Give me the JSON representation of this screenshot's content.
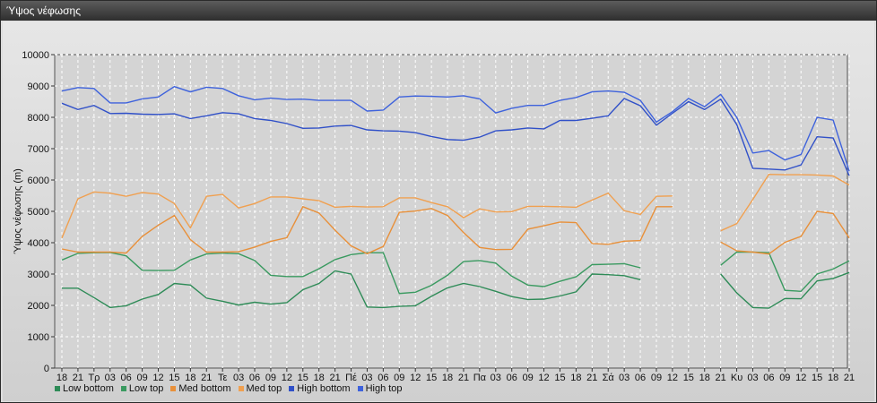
{
  "window": {
    "title": "Ύψος νέφωσης"
  },
  "chart_data": {
    "type": "line",
    "ylabel": "Ύψος νέφωσης (m)",
    "ylim": [
      0,
      10000
    ],
    "yticks": [
      0,
      1000,
      2000,
      3000,
      4000,
      5000,
      6000,
      7000,
      8000,
      9000,
      10000
    ],
    "grid": true,
    "legend": "bottom-left",
    "xticks": [
      "18",
      "21",
      "Τρ",
      "03",
      "06",
      "09",
      "12",
      "15",
      "18",
      "21",
      "Τε",
      "03",
      "06",
      "09",
      "12",
      "15",
      "18",
      "21",
      "Πέ",
      "03",
      "06",
      "09",
      "12",
      "15",
      "18",
      "21",
      "Πα",
      "03",
      "06",
      "09",
      "12",
      "15",
      "18",
      "21",
      "Σά",
      "03",
      "06",
      "09",
      "12",
      "15",
      "18",
      "21",
      "Κυ",
      "03",
      "06",
      "09",
      "12",
      "15",
      "18",
      "21"
    ],
    "series": [
      {
        "name": "Low bottom",
        "color": "#2e8b57",
        "values": [
          2550,
          2550,
          2250,
          1930,
          1990,
          2200,
          2350,
          2700,
          2650,
          2230,
          2130,
          2010,
          2100,
          2040,
          2090,
          2500,
          2700,
          3100,
          3000,
          1950,
          1930,
          1970,
          1990,
          2290,
          2560,
          2700,
          2600,
          2450,
          2280,
          2190,
          2200,
          2300,
          2430,
          3000,
          2980,
          2950,
          2820,
          null,
          null,
          null,
          null,
          3000,
          2400,
          1930,
          1910,
          2220,
          2210,
          2780,
          2860,
          3050
        ]
      },
      {
        "name": "Low top",
        "color": "#3a9a60",
        "values": [
          3450,
          3660,
          3680,
          3690,
          3580,
          3120,
          3110,
          3120,
          3450,
          3640,
          3670,
          3650,
          3430,
          2960,
          2920,
          2920,
          3170,
          3460,
          3620,
          3680,
          3680,
          2380,
          2420,
          2640,
          2960,
          3400,
          3430,
          3350,
          2930,
          2650,
          2600,
          2770,
          2910,
          3300,
          3310,
          3330,
          3200,
          null,
          null,
          null,
          null,
          3280,
          3700,
          3700,
          3680,
          2480,
          2450,
          3000,
          3160,
          3420
        ]
      },
      {
        "name": "Med bottom",
        "color": "#e8903a",
        "values": [
          3800,
          3700,
          3700,
          3700,
          3670,
          4200,
          4560,
          4870,
          4100,
          3700,
          3700,
          3710,
          3860,
          4040,
          4160,
          5150,
          4950,
          4400,
          3900,
          3650,
          3880,
          4970,
          5010,
          5090,
          4870,
          4320,
          3850,
          3780,
          3790,
          4430,
          4540,
          4660,
          4640,
          3970,
          3950,
          4050,
          4070,
          5150,
          5150,
          null,
          null,
          4020,
          3740,
          3700,
          3640,
          4010,
          4200,
          5000,
          4930,
          4150
        ]
      },
      {
        "name": "Med top",
        "color": "#f0a050",
        "values": [
          4150,
          5400,
          5620,
          5580,
          5480,
          5600,
          5550,
          5250,
          4470,
          5480,
          5540,
          5110,
          5250,
          5460,
          5460,
          5400,
          5340,
          5130,
          5160,
          5140,
          5150,
          5430,
          5430,
          5280,
          5150,
          4800,
          5080,
          4980,
          4990,
          5160,
          5160,
          5150,
          5130,
          5360,
          5580,
          5020,
          4900,
          5480,
          5490,
          null,
          null,
          4380,
          4610,
          5380,
          6180,
          6170,
          6170,
          6160,
          6130,
          5840
        ]
      },
      {
        "name": "High bottom",
        "color": "#3050c8",
        "values": [
          8450,
          8250,
          8380,
          8120,
          8130,
          8100,
          8090,
          8110,
          7960,
          8050,
          8150,
          8110,
          7960,
          7900,
          7800,
          7650,
          7660,
          7720,
          7740,
          7600,
          7570,
          7560,
          7510,
          7390,
          7290,
          7270,
          7370,
          7570,
          7600,
          7660,
          7630,
          7900,
          7900,
          7970,
          8050,
          8600,
          8370,
          7750,
          8130,
          8500,
          8250,
          8580,
          7770,
          6370,
          6350,
          6320,
          6480,
          7380,
          7340,
          6140
        ]
      },
      {
        "name": "High top",
        "color": "#3e62dc",
        "values": [
          8840,
          8950,
          8920,
          8460,
          8460,
          8590,
          8650,
          8980,
          8810,
          8960,
          8920,
          8690,
          8560,
          8610,
          8570,
          8580,
          8540,
          8540,
          8540,
          8200,
          8230,
          8650,
          8680,
          8670,
          8650,
          8690,
          8590,
          8140,
          8290,
          8380,
          8380,
          8540,
          8630,
          8810,
          8840,
          8800,
          8540,
          7850,
          8180,
          8600,
          8340,
          8730,
          8000,
          6860,
          6940,
          6640,
          6810,
          8000,
          7910,
          6280
        ]
      }
    ]
  }
}
